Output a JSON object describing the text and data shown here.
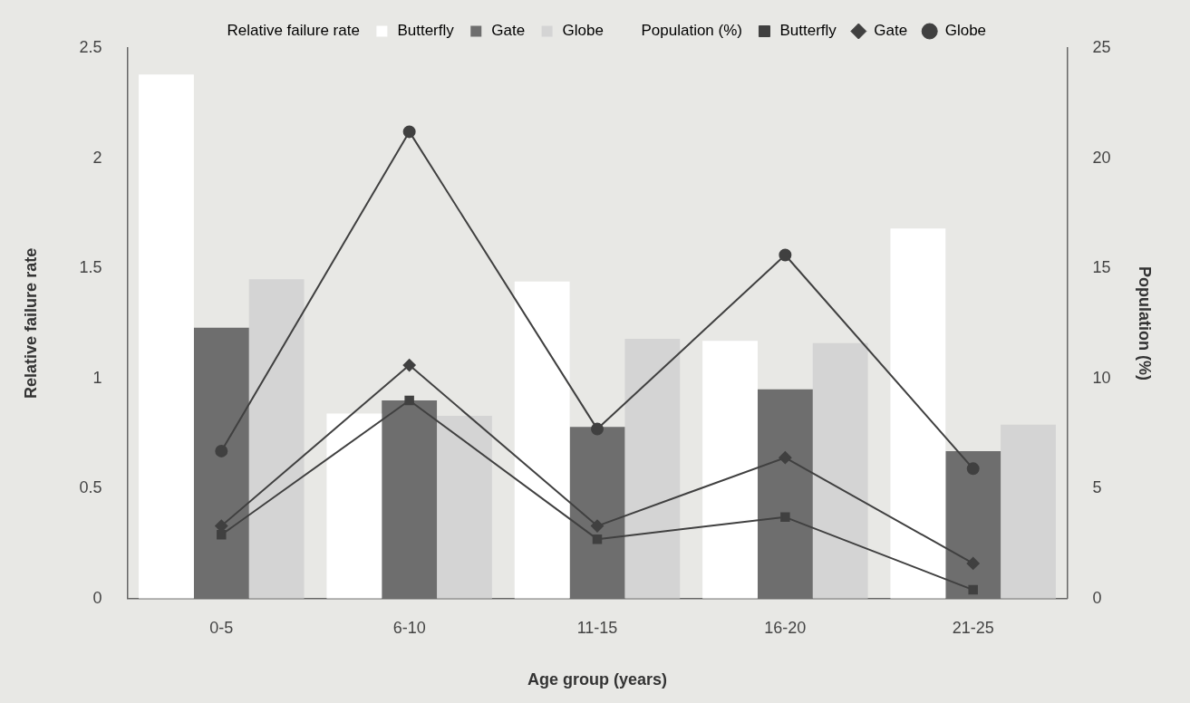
{
  "chart_data": {
    "type": "bar",
    "xlabel": "Age group (years)",
    "ylabel": "Relative failure rate",
    "y2label": "Population (%)",
    "categories": [
      "0-5",
      "6-10",
      "11-15",
      "16-20",
      "21-25"
    ],
    "series": [
      {
        "name": "Butterfly",
        "color": "#ffffff",
        "values": [
          2.38,
          0.84,
          1.44,
          1.17,
          1.68
        ]
      },
      {
        "name": "Gate",
        "color": "#6e6e6e",
        "values": [
          1.23,
          0.9,
          0.78,
          0.95,
          0.67
        ]
      },
      {
        "name": "Globe",
        "color": "#d4d4d4",
        "values": [
          1.45,
          0.83,
          1.18,
          1.16,
          0.79
        ]
      },
      {
        "name": "Butterfly",
        "type": "line",
        "axis": "y2",
        "color": "#404040",
        "marker": "square",
        "values": [
          2.9,
          9.0,
          2.7,
          3.7,
          0.4
        ]
      },
      {
        "name": "Gate",
        "type": "line",
        "axis": "y2",
        "color": "#404040",
        "marker": "diamond",
        "values": [
          3.3,
          10.6,
          3.3,
          6.4,
          1.6
        ]
      },
      {
        "name": "Globe",
        "type": "line",
        "axis": "y2",
        "color": "#404040",
        "marker": "circle",
        "values": [
          6.7,
          21.2,
          7.7,
          15.6,
          5.9
        ]
      }
    ],
    "annotations": [
      "Relative failure rate",
      "Population (%)"
    ],
    "ylim": [
      0,
      2.5
    ],
    "yticks": [
      0,
      0.5,
      1,
      1.5,
      2,
      2.5
    ],
    "y2lim": [
      0,
      25
    ],
    "y2ticks": [
      0,
      5,
      10,
      15,
      20,
      25
    ],
    "grid": false,
    "legend": "top",
    "line_style": "solid"
  }
}
